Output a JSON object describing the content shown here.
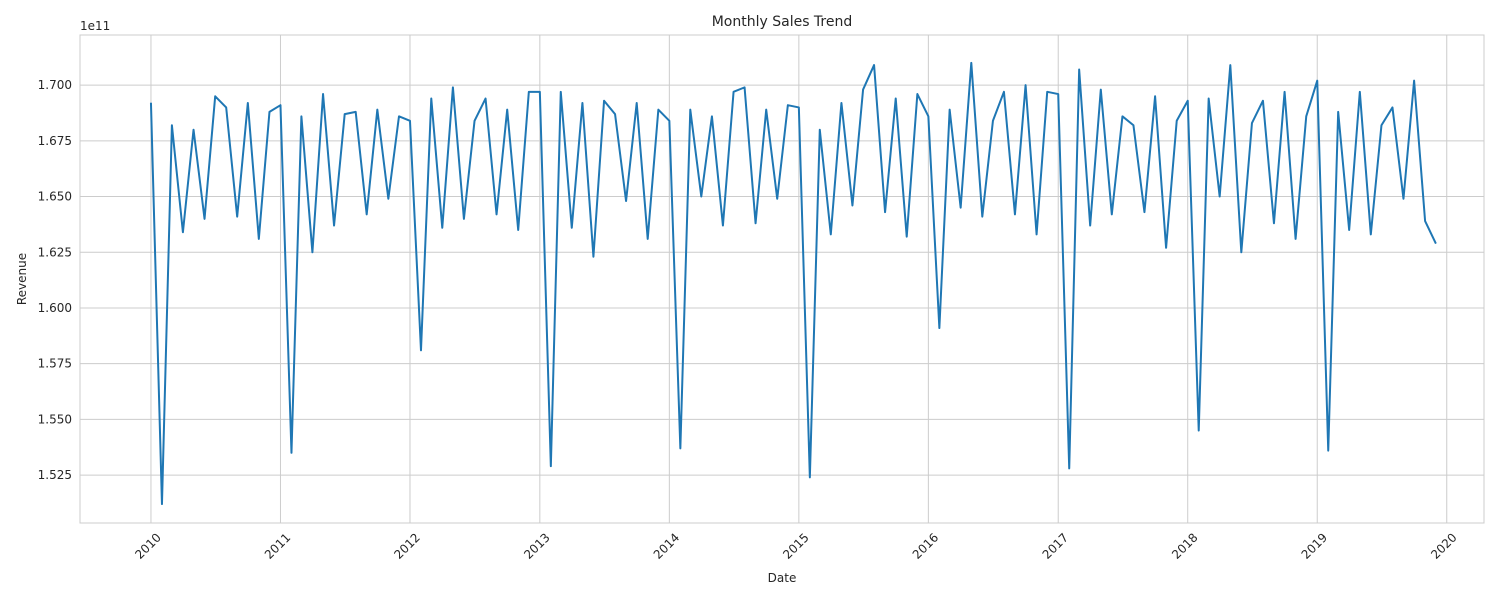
{
  "chart_data": {
    "type": "line",
    "title": "Monthly Sales Trend",
    "xlabel": "Date",
    "ylabel": "Revenue",
    "y_offset_label": "1e11",
    "y_scale_exponent": 11,
    "x_axis_type": "date",
    "xlim": [
      "2009-06-15",
      "2020-04-15"
    ],
    "ylim": [
      150350000000.0,
      172250000000.0
    ],
    "x_ticks": [
      {
        "date": "2010-01-01",
        "label": "2010"
      },
      {
        "date": "2011-01-01",
        "label": "2011"
      },
      {
        "date": "2012-01-01",
        "label": "2012"
      },
      {
        "date": "2013-01-01",
        "label": "2013"
      },
      {
        "date": "2014-01-01",
        "label": "2014"
      },
      {
        "date": "2015-01-01",
        "label": "2015"
      },
      {
        "date": "2016-01-01",
        "label": "2016"
      },
      {
        "date": "2017-01-01",
        "label": "2017"
      },
      {
        "date": "2018-01-01",
        "label": "2018"
      },
      {
        "date": "2019-01-01",
        "label": "2019"
      },
      {
        "date": "2020-01-01",
        "label": "2020"
      }
    ],
    "y_ticks": [
      {
        "value": 152500000000.0,
        "label": "1.525"
      },
      {
        "value": 155000000000.0,
        "label": "1.550"
      },
      {
        "value": 157500000000.0,
        "label": "1.575"
      },
      {
        "value": 160000000000.0,
        "label": "1.600"
      },
      {
        "value": 162500000000.0,
        "label": "1.625"
      },
      {
        "value": 165000000000.0,
        "label": "1.650"
      },
      {
        "value": 167500000000.0,
        "label": "1.675"
      },
      {
        "value": 170000000000.0,
        "label": "1.700"
      }
    ],
    "grid": true,
    "x_tick_rotation": 45,
    "series": [
      {
        "color": "#1f77b4",
        "x": [
          "2010-01",
          "2010-02",
          "2010-03",
          "2010-04",
          "2010-05",
          "2010-06",
          "2010-07",
          "2010-08",
          "2010-09",
          "2010-10",
          "2010-11",
          "2010-12",
          "2011-01",
          "2011-02",
          "2011-03",
          "2011-04",
          "2011-05",
          "2011-06",
          "2011-07",
          "2011-08",
          "2011-09",
          "2011-10",
          "2011-11",
          "2011-12",
          "2012-01",
          "2012-02",
          "2012-03",
          "2012-04",
          "2012-05",
          "2012-06",
          "2012-07",
          "2012-08",
          "2012-09",
          "2012-10",
          "2012-11",
          "2012-12",
          "2013-01",
          "2013-02",
          "2013-03",
          "2013-04",
          "2013-05",
          "2013-06",
          "2013-07",
          "2013-08",
          "2013-09",
          "2013-10",
          "2013-11",
          "2013-12",
          "2014-01",
          "2014-02",
          "2014-03",
          "2014-04",
          "2014-05",
          "2014-06",
          "2014-07",
          "2014-08",
          "2014-09",
          "2014-10",
          "2014-11",
          "2014-12",
          "2015-01",
          "2015-02",
          "2015-03",
          "2015-04",
          "2015-05",
          "2015-06",
          "2015-07",
          "2015-08",
          "2015-09",
          "2015-10",
          "2015-11",
          "2015-12",
          "2016-01",
          "2016-02",
          "2016-03",
          "2016-04",
          "2016-05",
          "2016-06",
          "2016-07",
          "2016-08",
          "2016-09",
          "2016-10",
          "2016-11",
          "2016-12",
          "2017-01",
          "2017-02",
          "2017-03",
          "2017-04",
          "2017-05",
          "2017-06",
          "2017-07",
          "2017-08",
          "2017-09",
          "2017-10",
          "2017-11",
          "2017-12",
          "2018-01",
          "2018-02",
          "2018-03",
          "2018-04",
          "2018-05",
          "2018-06",
          "2018-07",
          "2018-08",
          "2018-09",
          "2018-10",
          "2018-11",
          "2018-12",
          "2019-01",
          "2019-02",
          "2019-03",
          "2019-04",
          "2019-05",
          "2019-06",
          "2019-07",
          "2019-08",
          "2019-09",
          "2019-10",
          "2019-11",
          "2019-12"
        ],
        "values": [
          169200000000.0,
          151200000000.0,
          168200000000.0,
          163400000000.0,
          168000000000.0,
          164000000000.0,
          169500000000.0,
          169000000000.0,
          164100000000.0,
          169200000000.0,
          163100000000.0,
          168800000000.0,
          169100000000.0,
          153500000000.0,
          168600000000.0,
          162500000000.0,
          169600000000.0,
          163700000000.0,
          168700000000.0,
          168800000000.0,
          164200000000.0,
          168900000000.0,
          164900000000.0,
          168600000000.0,
          168400000000.0,
          158100000000.0,
          169400000000.0,
          163600000000.0,
          169900000000.0,
          164000000000.0,
          168400000000.0,
          169400000000.0,
          164200000000.0,
          168900000000.0,
          163500000000.0,
          169700000000.0,
          169700000000.0,
          152900000000.0,
          169700000000.0,
          163600000000.0,
          169200000000.0,
          162300000000.0,
          169300000000.0,
          168700000000.0,
          164800000000.0,
          169200000000.0,
          163100000000.0,
          168900000000.0,
          168400000000.0,
          153700000000.0,
          168900000000.0,
          165000000000.0,
          168600000000.0,
          163700000000.0,
          169700000000.0,
          169900000000.0,
          163800000000.0,
          168900000000.0,
          164900000000.0,
          169100000000.0,
          169000000000.0,
          152400000000.0,
          168000000000.0,
          163300000000.0,
          169200000000.0,
          164600000000.0,
          169800000000.0,
          170900000000.0,
          164300000000.0,
          169400000000.0,
          163200000000.0,
          169600000000.0,
          168600000000.0,
          159100000000.0,
          168900000000.0,
          164500000000.0,
          171000000000.0,
          164100000000.0,
          168400000000.0,
          169700000000.0,
          164200000000.0,
          170000000000.0,
          163300000000.0,
          169700000000.0,
          169600000000.0,
          152800000000.0,
          170700000000.0,
          163700000000.0,
          169800000000.0,
          164200000000.0,
          168600000000.0,
          168200000000.0,
          164300000000.0,
          169500000000.0,
          162700000000.0,
          168400000000.0,
          169300000000.0,
          154500000000.0,
          169400000000.0,
          165000000000.0,
          170900000000.0,
          162500000000.0,
          168300000000.0,
          169300000000.0,
          163800000000.0,
          169700000000.0,
          163100000000.0,
          168600000000.0,
          170200000000.0,
          153600000000.0,
          168800000000.0,
          163500000000.0,
          169700000000.0,
          163300000000.0,
          168200000000.0,
          169000000000.0,
          164900000000.0,
          170200000000.0,
          163900000000.0,
          162900000000.0
        ]
      }
    ]
  }
}
